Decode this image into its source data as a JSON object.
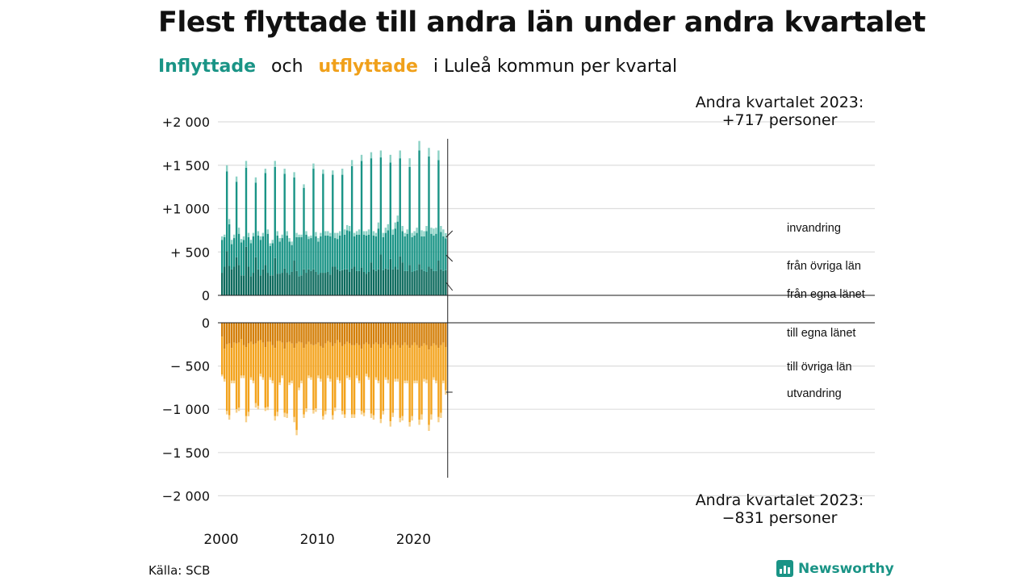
{
  "header": {
    "title": "Flest flyttade till andra län under andra kvartalet",
    "subtitle_in": "Inflyttade",
    "subtitle_and": "och",
    "subtitle_out": "utflyttade",
    "subtitle_rest": "i Luleå kommun per kvartal"
  },
  "footer": {
    "source": "Källa: SCB",
    "brand": "Newsworthy"
  },
  "colors": {
    "in_dark": "#0e6b5e",
    "in_mid": "#1a9486",
    "in_light": "#8dd2c6",
    "out_dark": "#d47f08",
    "out_mid": "#f3a31d",
    "out_light": "#f7d08a",
    "grid": "#dddddd"
  },
  "chart_data": {
    "type": "bar",
    "stacked": true,
    "x_start": "2000 Q1",
    "x_ticks": [
      "2000",
      "2010",
      "2020"
    ],
    "y_ticks_in": [
      "+2 000",
      "+1 500",
      "+1 000",
      "+  500",
      "0"
    ],
    "y_ticks_out": [
      "0",
      "− 500",
      "−1 000",
      "−1 500",
      "−2 000"
    ],
    "ylim_in": [
      0,
      2000
    ],
    "ylim_out": [
      -2000,
      0
    ],
    "grid": true,
    "series_in_labels": [
      "invandring",
      "från övriga län",
      "från egna länet"
    ],
    "series_out_labels": [
      "till egna länet",
      "till övriga län",
      "utvandring"
    ],
    "annotation_in": [
      "Andra kvartalet 2023:",
      "+717 personer"
    ],
    "annotation_out": [
      "Andra kvartalet 2023:",
      "−831 personer"
    ],
    "in_total": [
      680,
      700,
      1500,
      880,
      640,
      700,
      1370,
      780,
      650,
      680,
      1550,
      720,
      640,
      720,
      1360,
      740,
      680,
      720,
      1460,
      760,
      600,
      640,
      1550,
      740,
      660,
      700,
      1460,
      740,
      660,
      620,
      1420,
      720,
      700,
      700,
      1280,
      740,
      680,
      690,
      1520,
      730,
      660,
      720,
      1450,
      740,
      740,
      720,
      1440,
      720,
      720,
      740,
      1460,
      760,
      810,
      800,
      1560,
      720,
      740,
      760,
      1620,
      740,
      740,
      760,
      1650,
      740,
      720,
      840,
      1670,
      720,
      780,
      820,
      1620,
      760,
      840,
      920,
      1670,
      800,
      720,
      760,
      1580,
      720,
      740,
      780,
      1780,
      750,
      740,
      800,
      1700,
      780,
      770,
      780,
      1670,
      800,
      760,
      717
    ],
    "in_local": [
      260,
      330,
      510,
      340,
      300,
      330,
      440,
      350,
      230,
      230,
      560,
      330,
      220,
      260,
      440,
      300,
      230,
      300,
      350,
      260,
      230,
      230,
      430,
      250,
      250,
      260,
      310,
      260,
      240,
      270,
      400,
      280,
      220,
      230,
      300,
      260,
      300,
      280,
      300,
      270,
      240,
      260,
      260,
      260,
      270,
      240,
      330,
      330,
      300,
      280,
      290,
      300,
      300,
      270,
      310,
      330,
      280,
      280,
      320,
      270,
      250,
      270,
      380,
      300,
      280,
      300,
      470,
      290,
      310,
      300,
      420,
      300,
      330,
      300,
      450,
      380,
      280,
      280,
      350,
      270,
      280,
      290,
      360,
      300,
      280,
      270,
      330,
      310,
      280,
      280,
      400,
      300,
      280,
      290
    ],
    "in_migr": [
      40,
      30,
      70,
      60,
      50,
      40,
      60,
      70,
      40,
      40,
      80,
      50,
      40,
      40,
      60,
      50,
      40,
      40,
      50,
      50,
      30,
      40,
      70,
      50,
      40,
      40,
      60,
      50,
      40,
      40,
      60,
      50,
      30,
      30,
      40,
      40,
      30,
      30,
      60,
      50,
      40,
      40,
      50,
      50,
      50,
      40,
      50,
      60,
      70,
      50,
      70,
      60,
      60,
      60,
      70,
      40,
      40,
      60,
      70,
      40,
      50,
      60,
      70,
      50,
      40,
      70,
      80,
      50,
      60,
      70,
      90,
      60,
      70,
      70,
      90,
      60,
      40,
      50,
      100,
      50,
      50,
      60,
      110,
      70,
      60,
      60,
      100,
      70,
      80,
      70,
      110,
      70,
      80,
      60
    ],
    "out_total": [
      -620,
      -680,
      -1060,
      -1120,
      -700,
      -700,
      -1040,
      -1020,
      -640,
      -640,
      -1150,
      -1080,
      -660,
      -700,
      -980,
      -1000,
      -620,
      -660,
      -1020,
      -1010,
      -660,
      -700,
      -1130,
      -1080,
      -720,
      -640,
      -1090,
      -1100,
      -720,
      -700,
      -1150,
      -1300,
      -780,
      -700,
      -1100,
      -1030,
      -640,
      -660,
      -1050,
      -1030,
      -640,
      -680,
      -1120,
      -1060,
      -640,
      -680,
      -1120,
      -1020,
      -660,
      -700,
      -1060,
      -1100,
      -640,
      -660,
      -1100,
      -1100,
      -640,
      -700,
      -1060,
      -1080,
      -620,
      -660,
      -1100,
      -1120,
      -660,
      -700,
      -1160,
      -1060,
      -660,
      -700,
      -1200,
      -1090,
      -680,
      -680,
      -1150,
      -1130,
      -700,
      -700,
      -1200,
      -1130,
      -700,
      -700,
      -1180,
      -1120,
      -680,
      -700,
      -1250,
      -1120,
      -660,
      -700,
      -1150,
      -1100,
      -700,
      -831
    ],
    "out_local": [
      -160,
      -300,
      -250,
      -240,
      -290,
      -230,
      -240,
      -230,
      -190,
      -260,
      -280,
      -240,
      -220,
      -250,
      -240,
      -210,
      -200,
      -230,
      -280,
      -220,
      -220,
      -260,
      -290,
      -210,
      -210,
      -230,
      -300,
      -230,
      -220,
      -240,
      -290,
      -240,
      -220,
      -230,
      -290,
      -250,
      -220,
      -250,
      -260,
      -250,
      -230,
      -270,
      -290,
      -240,
      -210,
      -230,
      -270,
      -240,
      -200,
      -230,
      -270,
      -250,
      -220,
      -240,
      -260,
      -260,
      -240,
      -260,
      -300,
      -250,
      -230,
      -250,
      -290,
      -250,
      -230,
      -250,
      -290,
      -250,
      -230,
      -260,
      -300,
      -260,
      -230,
      -260,
      -290,
      -260,
      -230,
      -260,
      -290,
      -260,
      -230,
      -260,
      -290,
      -270,
      -240,
      -260,
      -310,
      -270,
      -240,
      -260,
      -290,
      -260,
      -230,
      -280
    ],
    "out_emig": [
      -20,
      -30,
      -40,
      -50,
      -30,
      -30,
      -40,
      -40,
      -30,
      -30,
      -70,
      -50,
      -30,
      -30,
      -50,
      -40,
      -30,
      -30,
      -40,
      -40,
      -30,
      -30,
      -50,
      -50,
      -30,
      -30,
      -50,
      -50,
      -30,
      -30,
      -60,
      -60,
      -30,
      -30,
      -40,
      -40,
      -30,
      -30,
      -40,
      -40,
      -30,
      -30,
      -40,
      -40,
      -30,
      -30,
      -50,
      -40,
      -30,
      -30,
      -40,
      -40,
      -30,
      -30,
      -40,
      -40,
      -30,
      -30,
      -40,
      -40,
      -30,
      -30,
      -50,
      -50,
      -30,
      -30,
      -50,
      -40,
      -30,
      -40,
      -60,
      -50,
      -30,
      -30,
      -50,
      -50,
      -30,
      -30,
      -50,
      -50,
      -30,
      -30,
      -60,
      -60,
      -30,
      -40,
      -70,
      -60,
      -30,
      -30,
      -60,
      -60,
      -30,
      -50
    ]
  }
}
